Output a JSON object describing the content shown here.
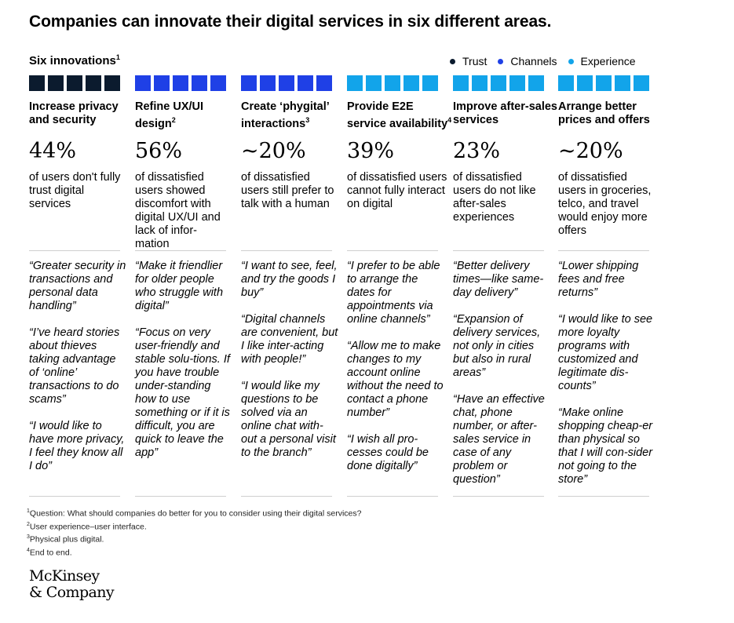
{
  "title": "Companies can innovate their digital services in six different areas.",
  "subtitle": {
    "text": "Six innovations",
    "sup": "1"
  },
  "legend": [
    {
      "label": "Trust",
      "color": "#0b1b2e"
    },
    {
      "label": "Channels",
      "color": "#1f40e6"
    },
    {
      "label": "Experience",
      "color": "#12a4ea"
    }
  ],
  "chart_data": {
    "type": "table",
    "title": "Companies can innovate their digital services in six different areas.",
    "columns": [
      {
        "category": "Trust",
        "squares": 5,
        "color": "#0b1b2e",
        "heading": "Increase privacy and security",
        "heading_sup": "",
        "stat": "44%",
        "stat_value": 44,
        "approx": false,
        "description": "of users don't fully trust digital services",
        "quotes": [
          "“Greater security in transactions and personal data handling”",
          "“I’ve heard stories about thieves taking advantage of ‘online’ transactions to do scams”",
          "“I would like to have more privacy, I feel they know all I do”"
        ]
      },
      {
        "category": "Channels",
        "squares": 5,
        "color": "#1f40e6",
        "heading": "Refine UX/UI design",
        "heading_sup": "2",
        "stat": "56%",
        "stat_value": 56,
        "approx": false,
        "description": "of dissatisfied users showed discomfort with digital UX/UI and lack of infor-mation",
        "quotes": [
          "“Make it friendlier for older people who struggle with digital”",
          "“Focus on very user-friendly and stable solu-tions. If you have trouble under-standing how to use something or if it is difficult, you are quick to leave the app”"
        ]
      },
      {
        "category": "Channels",
        "squares": 5,
        "color": "#1f40e6",
        "heading": "Create ‘phygital’ interactions",
        "heading_sup": "3",
        "stat": "~20%",
        "stat_value": 20,
        "approx": true,
        "description": "of dissatisfied users still prefer to talk with a human",
        "quotes": [
          "“I want to see, feel, and try the goods I buy”",
          "“Digital channels are convenient, but I like inter-acting with people!”",
          "“I would like my questions to be solved via an online chat with-out a personal visit to the branch”"
        ]
      },
      {
        "category": "Experience",
        "squares": 5,
        "color": "#12a4ea",
        "heading": "Provide E2E service availability",
        "heading_sup": "4",
        "stat": "39%",
        "stat_value": 39,
        "approx": false,
        "description": "of dissatisfied users cannot fully interact on digital",
        "quotes": [
          "“I prefer to be able to arrange the dates for appointments via online channels”",
          "“Allow me to make changes to my account online without the need to contact a phone number”",
          "“I wish all pro-cesses could be done digitally”"
        ]
      },
      {
        "category": "Experience",
        "squares": 5,
        "color": "#12a4ea",
        "heading": "Improve after-sales services",
        "heading_sup": "",
        "stat": "23%",
        "stat_value": 23,
        "approx": false,
        "description": "of dissatisfied users do not like after-sales experiences",
        "quotes": [
          "“Better delivery times—like same-day delivery”",
          "“Expansion of delivery services, not only in cities but also in rural areas”",
          "“Have an effective chat, phone number, or after-sales service in case of any problem or question”"
        ]
      },
      {
        "category": "Experience",
        "squares": 5,
        "color": "#12a4ea",
        "heading": "Arrange better prices and offers",
        "heading_sup": "",
        "stat": "~20%",
        "stat_value": 20,
        "approx": true,
        "description": "of dissatisfied users in groceries, telco, and travel would enjoy more offers",
        "quotes": [
          "“Lower shipping fees and free returns”",
          "“I would like to see more loyalty programs with customized and legitimate dis-counts”",
          "“Make online shopping cheap-er than physical so that I will con-sider not going to the store”"
        ]
      }
    ]
  },
  "footnotes": [
    {
      "sup": "1",
      "text": "Question: What should companies do better for you to consider using their digital services?"
    },
    {
      "sup": "2",
      "text": "User experience–user interface."
    },
    {
      "sup": "3",
      "text": "Physical plus digital."
    },
    {
      "sup": "4",
      "text": "End to end."
    }
  ],
  "logo": {
    "line1": "McKinsey",
    "line2": "& Company"
  }
}
